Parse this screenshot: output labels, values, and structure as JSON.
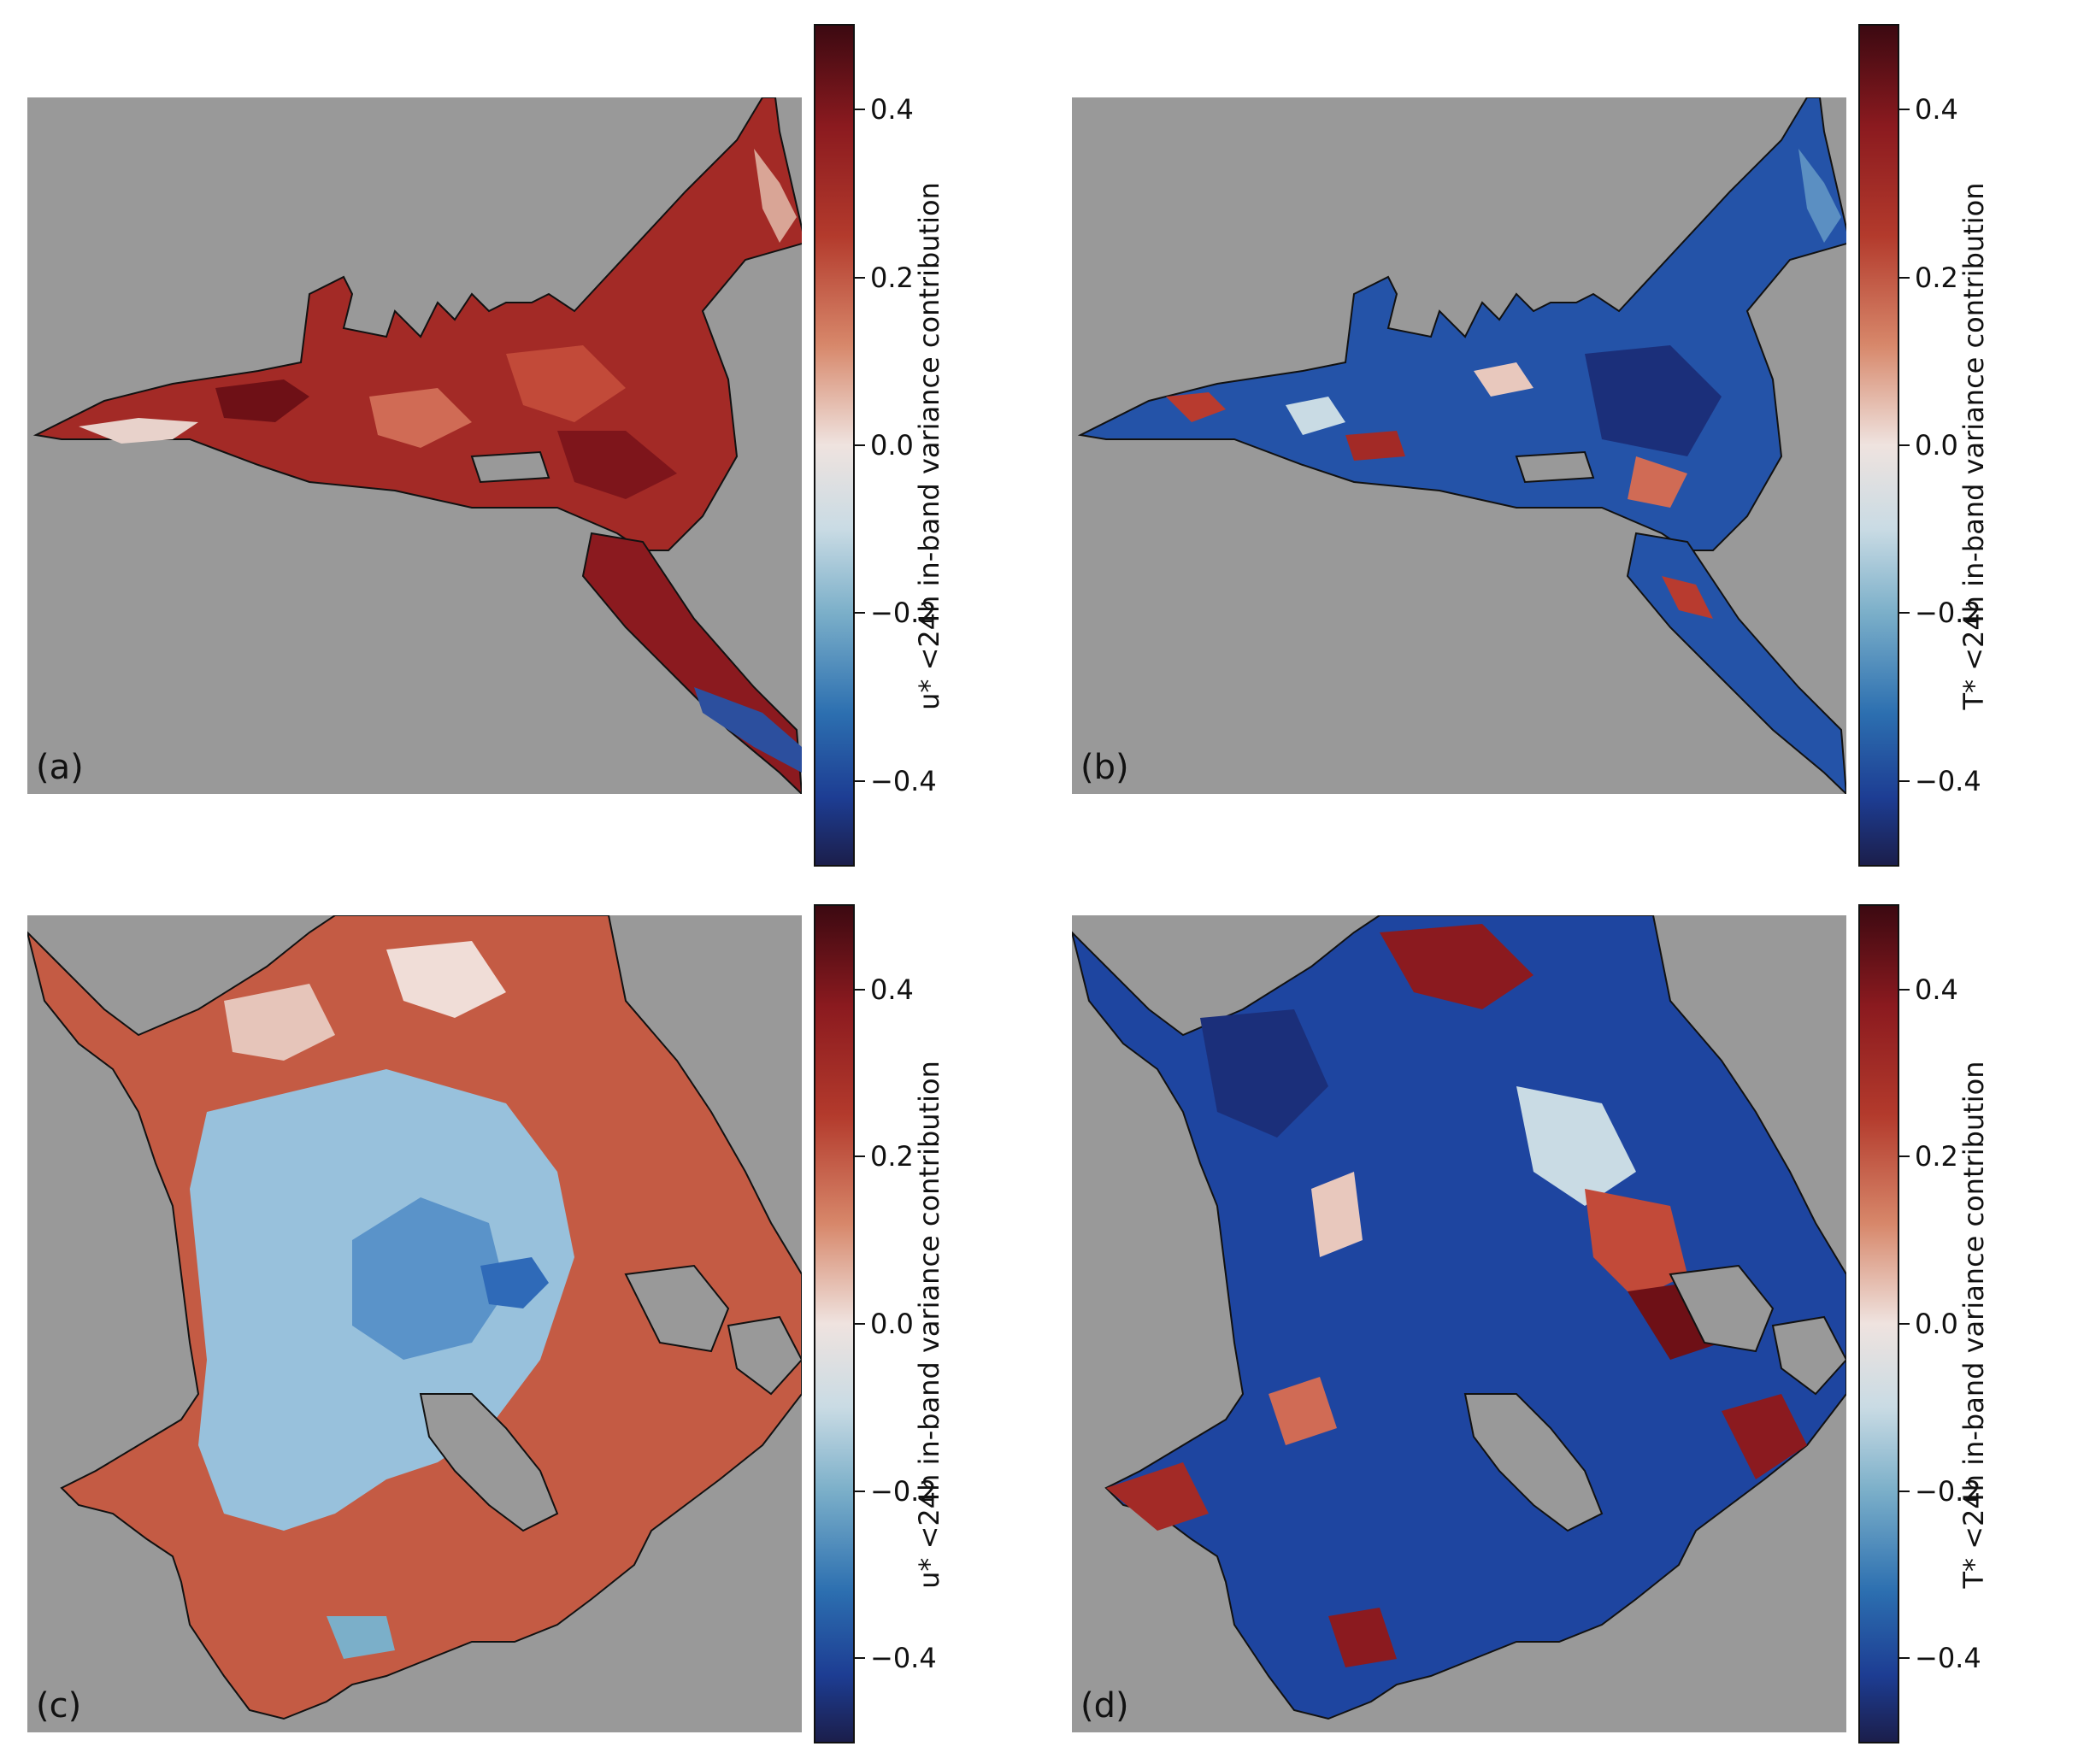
{
  "panels": [
    {
      "label": "(a)",
      "cbar_label": "u* <24h in-band variance contribution"
    },
    {
      "label": "(b)",
      "cbar_label": "T* <24h in-band variance contribution"
    },
    {
      "label": "(c)",
      "cbar_label": "u* <24h in-band variance contribution"
    },
    {
      "label": "(d)",
      "cbar_label": "T* <24h in-band variance contribution"
    }
  ],
  "colorbar": {
    "range": [
      -0.5,
      0.5
    ],
    "ticks": [
      "0.4",
      "0.2",
      "0.0",
      "−0.2",
      "−0.4"
    ],
    "tick_values": [
      0.4,
      0.2,
      0.0,
      -0.2,
      -0.4
    ],
    "colormap": "balance (diverging blue-white-red)"
  },
  "colors": {
    "land": "#999999",
    "positive_dark": "#8b1a1f",
    "positive_mid": "#c4553d",
    "neutral": "#efe3df",
    "negative_mid": "#7bafc9",
    "negative_dark": "#1d3d93"
  }
}
